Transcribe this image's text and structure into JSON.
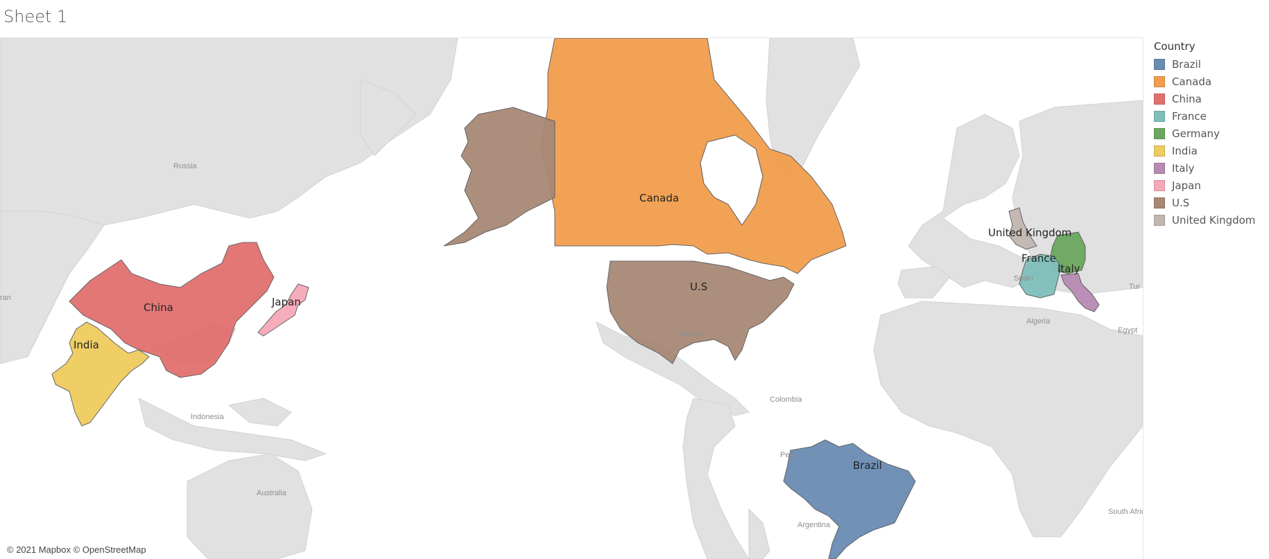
{
  "sheet": {
    "title": "Sheet 1"
  },
  "attribution": "© 2021 Mapbox © OpenStreetMap",
  "legend": {
    "title": "Country",
    "items": [
      {
        "label": "Brazil",
        "color": "#6a8cb4"
      },
      {
        "label": "Canada",
        "color": "#f29e4c"
      },
      {
        "label": "China",
        "color": "#e2706f"
      },
      {
        "label": "France",
        "color": "#7fbfba"
      },
      {
        "label": "Germany",
        "color": "#6aa85e"
      },
      {
        "label": "India",
        "color": "#efcc5e"
      },
      {
        "label": "Italy",
        "color": "#b88bb3"
      },
      {
        "label": "Japan",
        "color": "#f7a8b8"
      },
      {
        "label": "U.S",
        "color": "#a88876"
      },
      {
        "label": "United Kingdom",
        "color": "#c2b6b1"
      }
    ]
  },
  "map": {
    "country_labels": {
      "canada": "Canada",
      "us": "U.S",
      "china": "China",
      "japan": "Japan",
      "india": "India",
      "brazil": "Brazil",
      "uk": "United Kingdom",
      "france": "France",
      "italy": "Italy"
    },
    "basemap_labels": {
      "russia": "Russia",
      "indonesia": "Indonesia",
      "australia": "Australia",
      "mexico": "Mexico",
      "colombia": "Colombia",
      "peru": "Peru",
      "argentina": "Argentina",
      "spain": "Spain",
      "algeria": "Algeria",
      "egypt": "Egypt",
      "south_africa": "South Africa",
      "iran_partial": "ran",
      "turkey_partial": "Tur"
    }
  }
}
